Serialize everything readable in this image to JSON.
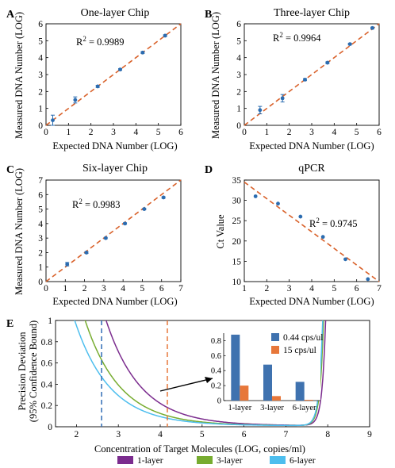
{
  "chart_data": [
    {
      "type": "scatter",
      "panel": "A",
      "title": "One-layer Chip",
      "xlabel": "Expected DNA Number (LOG)",
      "ylabel": "Measured DNA Number (LOG)",
      "xlim": [
        0,
        6
      ],
      "ylim": [
        0,
        6
      ],
      "xticks": [
        "0",
        "1",
        "2",
        "3",
        "4",
        "5",
        "6"
      ],
      "yticks": [
        "0",
        "1",
        "2",
        "3",
        "4",
        "5",
        "6"
      ],
      "annotation_base": "R",
      "annotation_sup": "2",
      "annotation_value": " = 0.9989",
      "points": [
        {
          "x": 0.3,
          "y": 0.3,
          "err": 0.3
        },
        {
          "x": 1.3,
          "y": 1.5,
          "err": 0.18
        },
        {
          "x": 2.3,
          "y": 2.3,
          "err": 0.06
        },
        {
          "x": 3.3,
          "y": 3.3,
          "err": 0.05
        },
        {
          "x": 4.3,
          "y": 4.3,
          "err": 0.05
        },
        {
          "x": 5.3,
          "y": 5.3,
          "err": 0.05
        }
      ],
      "fit": [
        [
          0,
          0
        ],
        [
          6,
          6
        ]
      ]
    },
    {
      "type": "scatter",
      "panel": "B",
      "title": "Three-layer Chip",
      "xlabel": "Expected DNA Number (LOG)",
      "ylabel": "Measured DNA Number (LOG)",
      "xlim": [
        0,
        6
      ],
      "ylim": [
        0,
        6
      ],
      "xticks": [
        "0",
        "1",
        "2",
        "3",
        "4",
        "5",
        "6"
      ],
      "yticks": [
        "0",
        "1",
        "2",
        "3",
        "4",
        "5",
        "6"
      ],
      "annotation_base": "R",
      "annotation_sup": "2",
      "annotation_value": " = 0.9964",
      "points": [
        {
          "x": 0.7,
          "y": 0.9,
          "err": 0.22
        },
        {
          "x": 1.7,
          "y": 1.6,
          "err": 0.22
        },
        {
          "x": 2.7,
          "y": 2.7,
          "err": 0.06
        },
        {
          "x": 3.7,
          "y": 3.7,
          "err": 0.05
        },
        {
          "x": 4.7,
          "y": 4.8,
          "err": 0.05
        },
        {
          "x": 5.7,
          "y": 5.75,
          "err": 0.05
        }
      ],
      "fit": [
        [
          0,
          0
        ],
        [
          6,
          6
        ]
      ]
    },
    {
      "type": "scatter",
      "panel": "C",
      "title": "Six-layer Chip",
      "xlabel": "Expected DNA Number (LOG)",
      "ylabel": "Measured DNA Number (LOG)",
      "xlim": [
        0,
        7
      ],
      "ylim": [
        0,
        7
      ],
      "xticks": [
        "0",
        "1",
        "2",
        "3",
        "4",
        "5",
        "6",
        "7"
      ],
      "yticks": [
        "0",
        "1",
        "2",
        "3",
        "4",
        "5",
        "6",
        "7"
      ],
      "annotation_base": "R",
      "annotation_sup": "2",
      "annotation_value": " = 0.9983",
      "points": [
        {
          "x": 1.1,
          "y": 1.2,
          "err": 0.12
        },
        {
          "x": 2.1,
          "y": 2.0,
          "err": 0.06
        },
        {
          "x": 3.1,
          "y": 3.0,
          "err": 0.05
        },
        {
          "x": 4.1,
          "y": 4.0,
          "err": 0.05
        },
        {
          "x": 5.1,
          "y": 5.0,
          "err": 0.05
        },
        {
          "x": 6.1,
          "y": 5.8,
          "err": 0.05
        }
      ],
      "fit": [
        [
          0,
          0
        ],
        [
          7,
          7
        ]
      ]
    },
    {
      "type": "scatter",
      "panel": "D",
      "title": "qPCR",
      "xlabel": "Expected DNA Number (LOG)",
      "ylabel": "Ct Value",
      "xlim": [
        1,
        7
      ],
      "ylim": [
        10,
        35
      ],
      "xticks": [
        "1",
        "2",
        "3",
        "4",
        "5",
        "6",
        "7"
      ],
      "yticks": [
        "10",
        "15",
        "20",
        "25",
        "30",
        "35"
      ],
      "annotation_base": "R",
      "annotation_sup": "2",
      "annotation_value": " = 0.9745",
      "points": [
        {
          "x": 1.5,
          "y": 31.0
        },
        {
          "x": 2.5,
          "y": 29.2
        },
        {
          "x": 3.5,
          "y": 26.0
        },
        {
          "x": 4.5,
          "y": 21.0
        },
        {
          "x": 5.5,
          "y": 15.5
        },
        {
          "x": 6.5,
          "y": 10.6
        }
      ],
      "fit": [
        [
          1,
          34.5
        ],
        [
          7,
          10
        ]
      ]
    },
    {
      "type": "line",
      "panel": "E",
      "xlabel": "Concentration of Target Molecules (LOG, copies/ml)",
      "ylabel_line1": "Precision Deviation",
      "ylabel_line2": "(95% Confidence Bound)",
      "xlim": [
        1.5,
        9
      ],
      "ylim": [
        0,
        1
      ],
      "xticks": [
        "2",
        "3",
        "4",
        "5",
        "6",
        "7",
        "8",
        "9"
      ],
      "yticks": [
        "0",
        "0.2",
        "0.4",
        "0.6",
        "0.8",
        "1"
      ],
      "series": [
        {
          "name": "1-layer",
          "color": "#7b2c8e",
          "x0": 2.7,
          "k": 1.2,
          "xr": 7.95
        },
        {
          "name": "3-layer",
          "color": "#77ac30",
          "x0": 2.2,
          "k": 1.2,
          "xr": 7.9
        },
        {
          "name": "6-layer",
          "color": "#4dbeee",
          "x0": 1.95,
          "k": 1.2,
          "xr": 7.88
        }
      ],
      "vlines": [
        {
          "x": 2.6,
          "color": "#2f6cb5"
        },
        {
          "x": 4.17,
          "color": "#e7773a"
        }
      ],
      "inset": {
        "type": "bar",
        "categories": [
          "1-layer",
          "3-layer",
          "6-layer"
        ],
        "series": [
          {
            "name": "0.44 cps/ul",
            "color": "#3f72af",
            "values": [
              0.88,
              0.48,
              0.25
            ]
          },
          {
            "name": "15 cps/ul",
            "color": "#e7773a",
            "values": [
              0.2,
              0.06,
              0.01
            ]
          }
        ],
        "ylim": [
          0,
          0.9
        ],
        "yticks": [
          "0",
          "0.2",
          "0.4",
          "0.6",
          "0.8"
        ]
      }
    }
  ],
  "colors": {
    "fit_line": "#d9622b",
    "marker": "#2b6cb0",
    "axis": "#000000"
  }
}
